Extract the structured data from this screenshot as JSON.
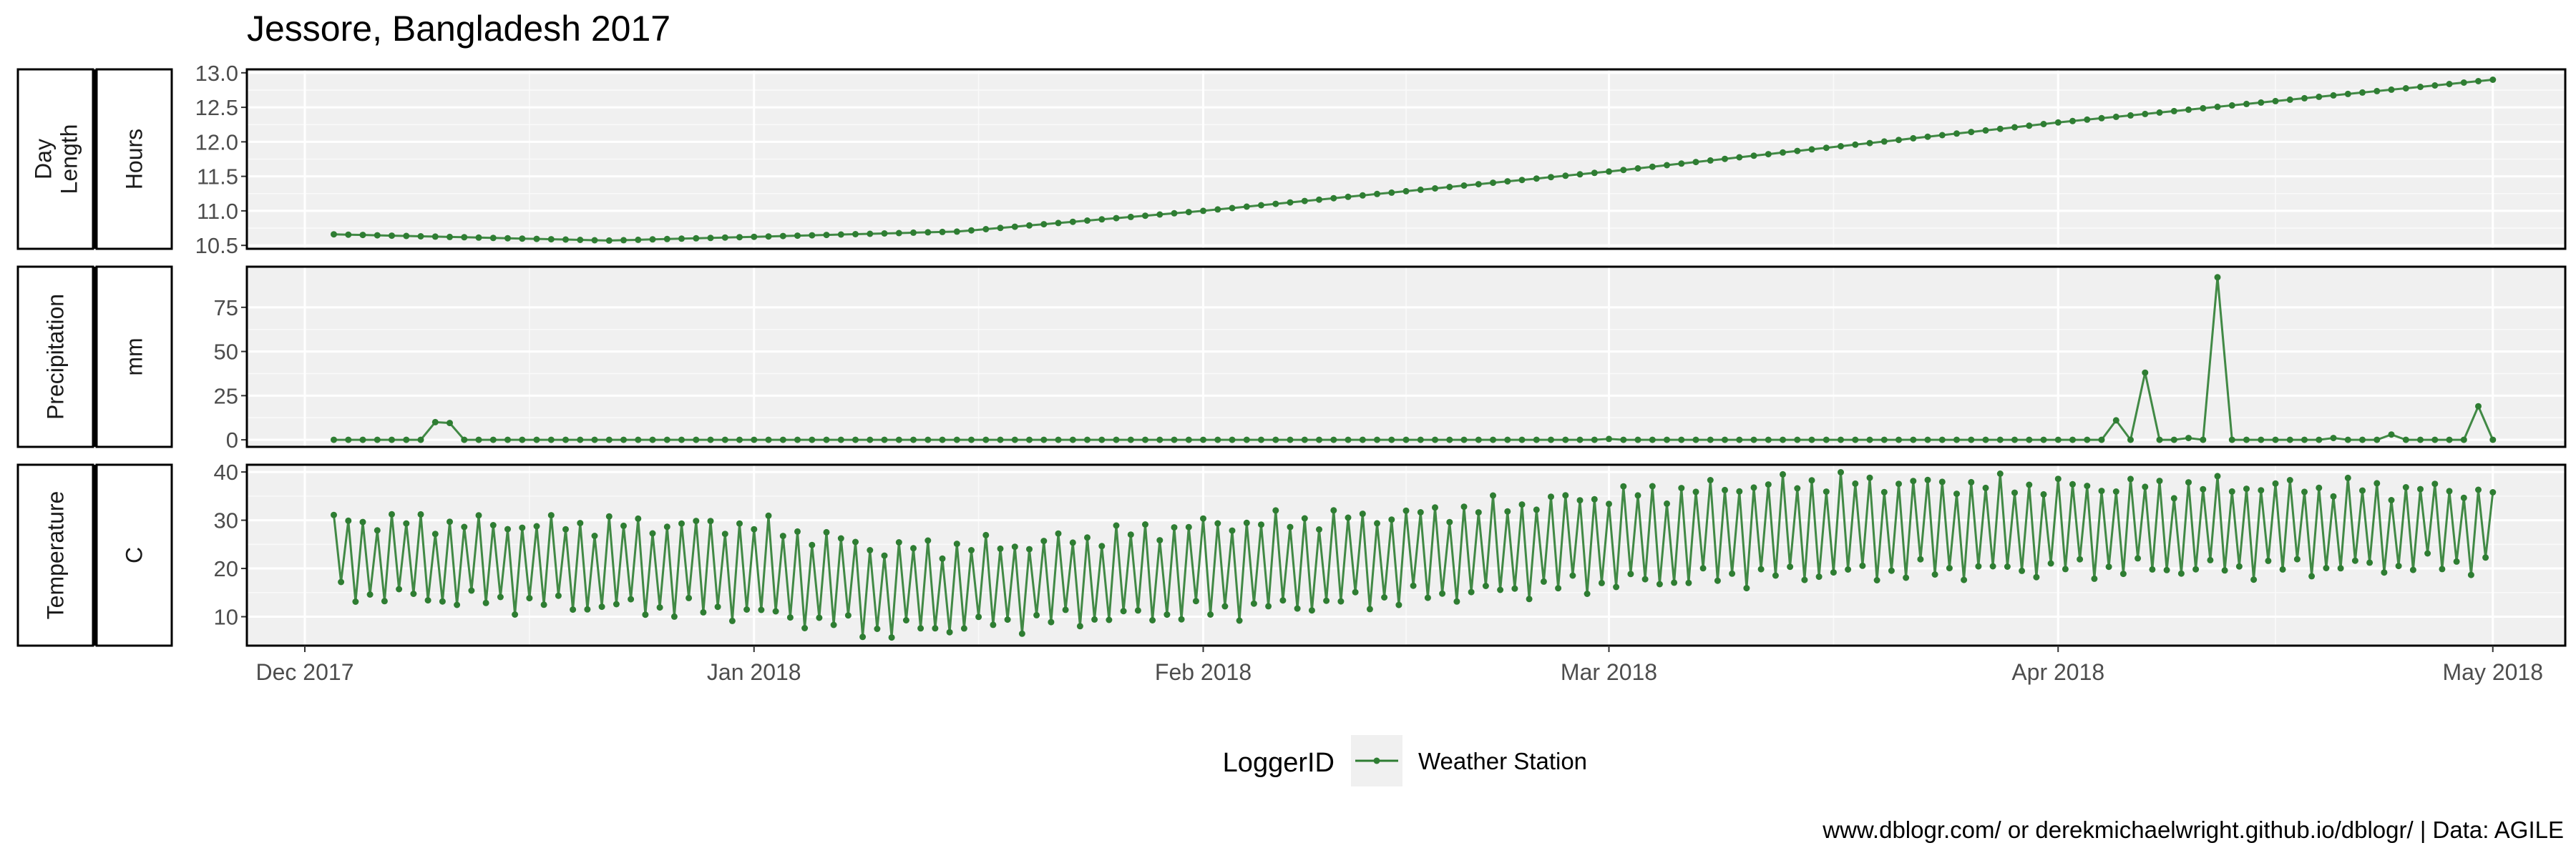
{
  "chart_data": {
    "type": "line",
    "title": "Jessore, Bangladesh 2017",
    "caption": "www.dblogr.com/ or derekmichaelwright.github.io/dblogr/ | Data: AGILE",
    "legend": {
      "title": "LoggerID",
      "entries": [
        "Weather Station"
      ],
      "position": "bottom"
    },
    "x_axis": {
      "type": "date",
      "range": [
        "2017-11-27",
        "2018-05-06"
      ],
      "ticks": [
        {
          "date": "2017-12-01",
          "label": "Dec 2017"
        },
        {
          "date": "2018-01-01",
          "label": "Jan 2018"
        },
        {
          "date": "2018-02-01",
          "label": "Feb 2018"
        },
        {
          "date": "2018-03-01",
          "label": "Mar 2018"
        },
        {
          "date": "2018-04-01",
          "label": "Apr 2018"
        },
        {
          "date": "2018-05-01",
          "label": "May 2018"
        }
      ]
    },
    "line_color": "#2e7d32",
    "panels": [
      {
        "id": "daylength",
        "strip_outer": "Day\nLength",
        "strip_inner": "Hours",
        "ylim": [
          10.45,
          13.05
        ],
        "yticks": [
          10.5,
          11.0,
          11.5,
          12.0,
          12.5,
          13.0
        ],
        "ytick_labels": [
          "10.5",
          "11.0",
          "11.5",
          "12.0",
          "12.5",
          "13.0"
        ],
        "series": "day_length",
        "points_def": {
          "start": "2017-12-03",
          "end": "2018-05-01",
          "step_days": 1,
          "anchors": [
            [
              "2017-12-03",
              10.66
            ],
            [
              "2017-12-22",
              10.57
            ],
            [
              "2018-01-15",
              10.7
            ],
            [
              "2018-02-01",
              11.0
            ],
            [
              "2018-03-01",
              11.57
            ],
            [
              "2018-04-01",
              12.28
            ],
            [
              "2018-05-01",
              12.9
            ]
          ]
        }
      },
      {
        "id": "precip",
        "strip_outer": "Precipitation",
        "strip_inner": "mm",
        "ylim": [
          -4,
          98
        ],
        "yticks": [
          0,
          25,
          50,
          75
        ],
        "ytick_labels": [
          "0",
          "25",
          "50",
          "75"
        ],
        "series": "precipitation",
        "points_def": {
          "start": "2017-12-03",
          "end": "2018-05-01",
          "step_days": 1,
          "default": 0,
          "values": [
            [
              "2017-12-10",
              10
            ],
            [
              "2017-12-11",
              9.5
            ],
            [
              "2018-03-01",
              0.5
            ],
            [
              "2018-04-05",
              11
            ],
            [
              "2018-04-06",
              0
            ],
            [
              "2018-04-07",
              38
            ],
            [
              "2018-04-10",
              1
            ],
            [
              "2018-04-12",
              92
            ],
            [
              "2018-04-20",
              1
            ],
            [
              "2018-04-24",
              3
            ],
            [
              "2018-04-30",
              19
            ]
          ]
        }
      },
      {
        "id": "temp",
        "strip_outer": "Temperature",
        "strip_inner": "C",
        "ylim": [
          4,
          41.5
        ],
        "yticks": [
          10,
          20,
          30,
          40
        ],
        "ytick_labels": [
          "10",
          "20",
          "30",
          "40"
        ],
        "series": "temperature",
        "points_def": {
          "start": "2017-12-03",
          "end": "2018-05-01",
          "step_days": 0.5,
          "max_anchors": [
            [
              "2017-12-03",
              30
            ],
            [
              "2017-12-15",
              29
            ],
            [
              "2018-01-01",
              29
            ],
            [
              "2018-01-10",
              24
            ],
            [
              "2018-01-20",
              25
            ],
            [
              "2018-02-01",
              29
            ],
            [
              "2018-02-15",
              31
            ],
            [
              "2018-03-01",
              35
            ],
            [
              "2018-03-15",
              38
            ],
            [
              "2018-04-01",
              37
            ],
            [
              "2018-04-15",
              37
            ],
            [
              "2018-05-01",
              36
            ]
          ],
          "min_anchors": [
            [
              "2017-12-03",
              15
            ],
            [
              "2017-12-15",
              13
            ],
            [
              "2018-01-01",
              11
            ],
            [
              "2018-01-10",
              7
            ],
            [
              "2018-01-20",
              9
            ],
            [
              "2018-02-01",
              11
            ],
            [
              "2018-02-15",
              14
            ],
            [
              "2018-03-01",
              17
            ],
            [
              "2018-03-15",
              19
            ],
            [
              "2018-04-01",
              20
            ],
            [
              "2018-04-15",
              20
            ],
            [
              "2018-05-01",
              21
            ]
          ]
        }
      }
    ]
  }
}
